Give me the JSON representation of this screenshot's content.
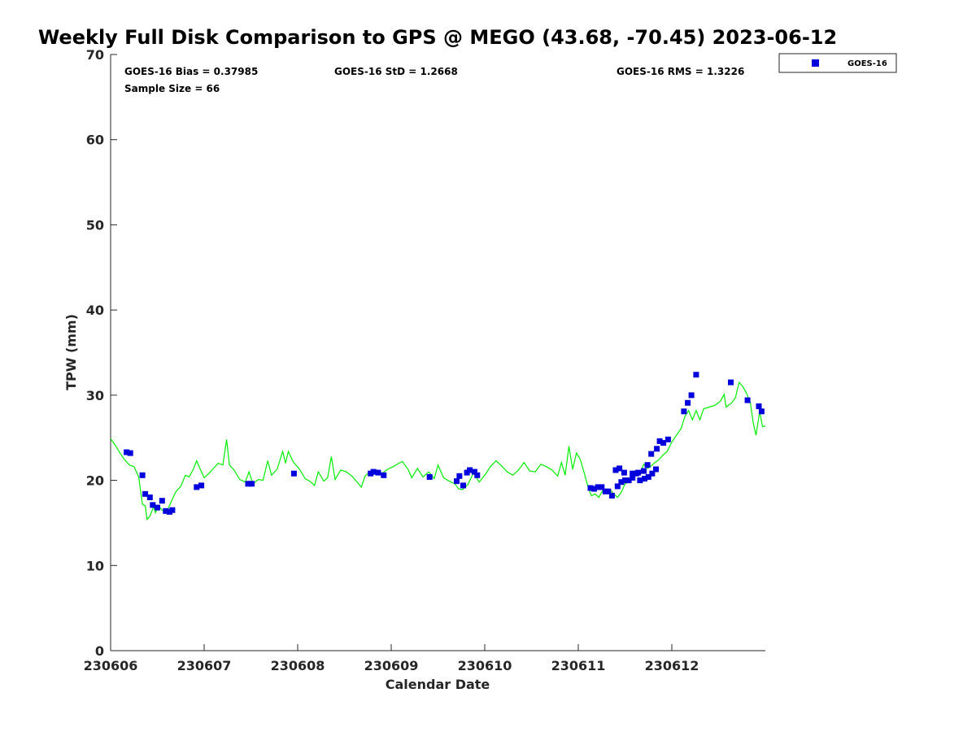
{
  "chart_data": {
    "type": "scatter",
    "title": "Weekly Full Disk Comparison to GPS @ MEGO (43.68, -70.45) 2023-06-12",
    "xlabel": "Calendar Date",
    "ylabel": "TPW (mm)",
    "xlim": [
      0,
      7
    ],
    "ylim": [
      0,
      70
    ],
    "x_ticks": [
      0,
      1,
      2,
      3,
      4,
      5,
      6
    ],
    "x_tick_labels": [
      "230606",
      "230607",
      "230608",
      "230609",
      "230610",
      "230611",
      "230612"
    ],
    "y_ticks": [
      0,
      10,
      20,
      30,
      40,
      50,
      60,
      70
    ],
    "y_tick_labels": [
      "0",
      "10",
      "20",
      "30",
      "40",
      "50",
      "60",
      "70"
    ],
    "grid": false,
    "legend_position": "outside-top-right",
    "stats": {
      "bias": "GOES-16 Bias = 0.37985",
      "std": "GOES-16 StD = 1.2668",
      "rms": "GOES-16 RMS = 1.3226",
      "sample": "Sample Size = 66"
    },
    "series": [
      {
        "name": "GOES-16",
        "kind": "scatter",
        "color": "#0000dd",
        "marker": "square",
        "points": [
          [
            0.17,
            23.3
          ],
          [
            0.21,
            23.2
          ],
          [
            0.34,
            20.6
          ],
          [
            0.37,
            18.4
          ],
          [
            0.42,
            18.0
          ],
          [
            0.45,
            17.1
          ],
          [
            0.5,
            16.8
          ],
          [
            0.55,
            17.6
          ],
          [
            0.59,
            16.4
          ],
          [
            0.63,
            16.3
          ],
          [
            0.66,
            16.5
          ],
          [
            0.92,
            19.2
          ],
          [
            0.97,
            19.4
          ],
          [
            1.47,
            19.6
          ],
          [
            1.51,
            19.6
          ],
          [
            1.96,
            20.8
          ],
          [
            2.78,
            20.8
          ],
          [
            2.81,
            21.0
          ],
          [
            2.86,
            20.9
          ],
          [
            2.92,
            20.6
          ],
          [
            3.41,
            20.4
          ],
          [
            3.7,
            19.9
          ],
          [
            3.73,
            20.5
          ],
          [
            3.77,
            19.4
          ],
          [
            3.81,
            20.9
          ],
          [
            3.84,
            21.2
          ],
          [
            3.89,
            21.0
          ],
          [
            3.92,
            20.6
          ],
          [
            5.4,
            21.2
          ],
          [
            5.44,
            21.4
          ],
          [
            5.49,
            20.9
          ],
          [
            5.58,
            20.8
          ],
          [
            5.64,
            20.9
          ],
          [
            5.71,
            20.2
          ],
          [
            5.75,
            20.4
          ],
          [
            5.79,
            20.8
          ],
          [
            5.83,
            21.3
          ],
          [
            5.13,
            19.1
          ],
          [
            5.17,
            19.0
          ],
          [
            5.21,
            19.2
          ],
          [
            5.25,
            19.2
          ],
          [
            5.29,
            18.7
          ],
          [
            5.32,
            18.7
          ],
          [
            5.36,
            18.2
          ],
          [
            5.42,
            19.3
          ],
          [
            5.46,
            19.8
          ],
          [
            5.5,
            20.0
          ],
          [
            5.54,
            20.0
          ],
          [
            5.58,
            20.3
          ],
          [
            5.62,
            20.8
          ],
          [
            5.66,
            20.0
          ],
          [
            5.7,
            21.1
          ],
          [
            5.74,
            21.8
          ],
          [
            5.78,
            23.1
          ],
          [
            5.84,
            23.7
          ],
          [
            5.87,
            24.6
          ],
          [
            5.91,
            24.4
          ],
          [
            5.96,
            24.8
          ],
          [
            6.13,
            28.1
          ],
          [
            6.17,
            29.1
          ],
          [
            6.21,
            30.0
          ],
          [
            6.26,
            32.4
          ],
          [
            6.63,
            31.5
          ],
          [
            6.81,
            29.4
          ],
          [
            6.93,
            28.7
          ],
          [
            6.96,
            28.1
          ]
        ]
      },
      {
        "name": "GPS",
        "kind": "line",
        "color": "#00ee00",
        "points": [
          [
            0.0,
            24.9
          ],
          [
            0.05,
            24.1
          ],
          [
            0.1,
            23.2
          ],
          [
            0.15,
            22.4
          ],
          [
            0.2,
            21.8
          ],
          [
            0.25,
            21.6
          ],
          [
            0.3,
            20.4
          ],
          [
            0.34,
            17.2
          ],
          [
            0.37,
            17.0
          ],
          [
            0.39,
            15.4
          ],
          [
            0.42,
            15.8
          ],
          [
            0.46,
            16.9
          ],
          [
            0.48,
            16.2
          ],
          [
            0.51,
            17.0
          ],
          [
            0.55,
            16.5
          ],
          [
            0.58,
            16.3
          ],
          [
            0.62,
            16.8
          ],
          [
            0.66,
            17.8
          ],
          [
            0.7,
            18.7
          ],
          [
            0.75,
            19.3
          ],
          [
            0.8,
            20.6
          ],
          [
            0.84,
            20.4
          ],
          [
            0.88,
            21.2
          ],
          [
            0.92,
            22.3
          ],
          [
            0.95,
            21.5
          ],
          [
            1.0,
            20.3
          ],
          [
            1.05,
            20.8
          ],
          [
            1.1,
            21.4
          ],
          [
            1.15,
            22.0
          ],
          [
            1.2,
            21.8
          ],
          [
            1.24,
            24.8
          ],
          [
            1.27,
            21.8
          ],
          [
            1.32,
            21.2
          ],
          [
            1.38,
            20.1
          ],
          [
            1.44,
            19.8
          ],
          [
            1.48,
            21.0
          ],
          [
            1.52,
            19.6
          ],
          [
            1.58,
            20.1
          ],
          [
            1.63,
            20.0
          ],
          [
            1.68,
            22.3
          ],
          [
            1.72,
            20.6
          ],
          [
            1.78,
            21.3
          ],
          [
            1.84,
            23.4
          ],
          [
            1.87,
            22.0
          ],
          [
            1.9,
            23.4
          ],
          [
            1.95,
            22.2
          ],
          [
            2.02,
            21.3
          ],
          [
            2.08,
            20.2
          ],
          [
            2.13,
            19.9
          ],
          [
            2.18,
            19.4
          ],
          [
            2.22,
            21.0
          ],
          [
            2.28,
            19.9
          ],
          [
            2.32,
            20.3
          ],
          [
            2.36,
            22.8
          ],
          [
            2.4,
            20.1
          ],
          [
            2.46,
            21.2
          ],
          [
            2.52,
            21.0
          ],
          [
            2.58,
            20.5
          ],
          [
            2.62,
            20.0
          ],
          [
            2.68,
            19.2
          ],
          [
            2.72,
            20.5
          ],
          [
            2.76,
            20.9
          ],
          [
            2.8,
            20.6
          ],
          [
            2.85,
            21.2
          ],
          [
            2.9,
            20.8
          ],
          [
            2.96,
            21.3
          ],
          [
            3.02,
            21.6
          ],
          [
            3.08,
            22.0
          ],
          [
            3.12,
            22.2
          ],
          [
            3.18,
            21.3
          ],
          [
            3.22,
            20.3
          ],
          [
            3.28,
            21.4
          ],
          [
            3.34,
            20.4
          ],
          [
            3.4,
            21.0
          ],
          [
            3.46,
            20.2
          ],
          [
            3.5,
            21.8
          ],
          [
            3.56,
            20.3
          ],
          [
            3.62,
            19.9
          ],
          [
            3.68,
            19.6
          ],
          [
            3.72,
            19.0
          ],
          [
            3.76,
            18.9
          ],
          [
            3.82,
            19.5
          ],
          [
            3.88,
            20.9
          ],
          [
            3.94,
            19.8
          ],
          [
            4.0,
            20.6
          ],
          [
            4.06,
            21.6
          ],
          [
            4.12,
            22.3
          ],
          [
            4.18,
            21.7
          ],
          [
            4.24,
            21.0
          ],
          [
            4.3,
            20.6
          ],
          [
            4.36,
            21.2
          ],
          [
            4.42,
            22.1
          ],
          [
            4.48,
            21.1
          ],
          [
            4.54,
            21.0
          ],
          [
            4.6,
            21.9
          ],
          [
            4.66,
            21.6
          ],
          [
            4.72,
            21.2
          ],
          [
            4.78,
            20.5
          ],
          [
            4.82,
            22.1
          ],
          [
            4.86,
            20.6
          ],
          [
            4.9,
            24.0
          ],
          [
            4.94,
            21.3
          ],
          [
            4.98,
            23.2
          ],
          [
            5.02,
            22.5
          ],
          [
            5.06,
            21.0
          ],
          [
            5.1,
            19.4
          ],
          [
            5.14,
            18.2
          ],
          [
            5.18,
            18.4
          ],
          [
            5.22,
            18.0
          ],
          [
            5.26,
            18.8
          ],
          [
            5.3,
            18.5
          ],
          [
            5.34,
            18.9
          ],
          [
            5.38,
            18.4
          ],
          [
            5.42,
            18.0
          ],
          [
            5.46,
            18.6
          ],
          [
            5.5,
            19.6
          ],
          [
            5.54,
            19.8
          ],
          [
            5.58,
            20.5
          ],
          [
            5.62,
            21.1
          ],
          [
            5.66,
            20.8
          ],
          [
            5.7,
            21.9
          ],
          [
            5.74,
            21.4
          ],
          [
            5.78,
            21.7
          ],
          [
            5.82,
            22.1
          ],
          [
            5.86,
            22.4
          ],
          [
            5.9,
            22.9
          ],
          [
            5.95,
            23.4
          ],
          [
            6.0,
            24.5
          ],
          [
            6.05,
            25.3
          ],
          [
            6.1,
            26.1
          ],
          [
            6.14,
            27.5
          ],
          [
            6.18,
            28.2
          ],
          [
            6.22,
            27.1
          ],
          [
            6.26,
            28.2
          ],
          [
            6.3,
            27.1
          ],
          [
            6.34,
            28.4
          ],
          [
            6.4,
            28.6
          ],
          [
            6.46,
            28.8
          ],
          [
            6.52,
            29.3
          ],
          [
            6.56,
            30.1
          ],
          [
            6.58,
            28.6
          ],
          [
            6.64,
            29.1
          ],
          [
            6.68,
            29.7
          ],
          [
            6.72,
            31.5
          ],
          [
            6.76,
            31.0
          ],
          [
            6.8,
            30.2
          ],
          [
            6.84,
            29.1
          ],
          [
            6.87,
            26.8
          ],
          [
            6.9,
            25.3
          ],
          [
            6.94,
            28.1
          ],
          [
            6.97,
            26.3
          ],
          [
            7.0,
            26.4
          ]
        ]
      }
    ]
  }
}
